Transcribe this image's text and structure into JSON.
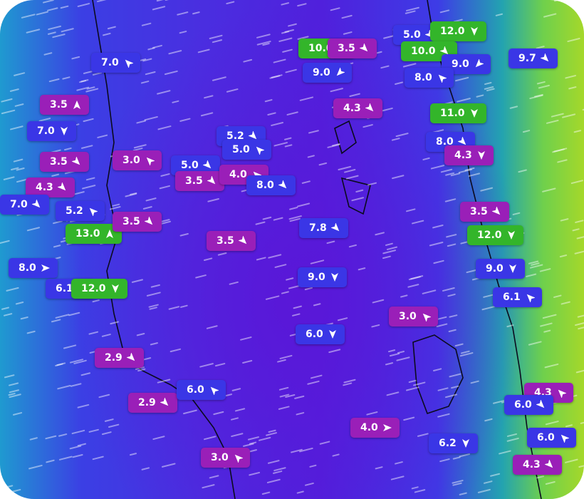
{
  "markers": [
    {
      "label": "7.0",
      "color": "#3a36e6"
    },
    {
      "label": "3.5",
      "color": "#9a1fb8"
    },
    {
      "label": "7.0",
      "color": "#3a36e6"
    },
    {
      "label": "3.5",
      "color": "#9a1fb8"
    },
    {
      "label": "4.3",
      "color": "#9a1fb8"
    },
    {
      "label": "7.0",
      "color": "#3a36e6"
    },
    {
      "label": "5.2",
      "color": "#3a36e6"
    },
    {
      "label": "13.0",
      "color": "#33b52a"
    },
    {
      "label": "3.5",
      "color": "#9a1fb8"
    },
    {
      "label": "3.0",
      "color": "#9a1fb8"
    },
    {
      "label": "5.0",
      "color": "#3a36e6"
    },
    {
      "label": "3.5",
      "color": "#9a1fb8"
    },
    {
      "label": "4.0",
      "color": "#9a1fb8"
    },
    {
      "label": "8.0",
      "color": "#3a36e6"
    },
    {
      "label": "5.2",
      "color": "#3a36e6"
    },
    {
      "label": "5.0",
      "color": "#3a36e6"
    },
    {
      "label": "3.5",
      "color": "#9a1fb8"
    },
    {
      "label": "8.0",
      "color": "#3a36e6"
    },
    {
      "label": "6.1",
      "color": "#3a36e6"
    },
    {
      "label": "12.0",
      "color": "#33b52a"
    },
    {
      "label": "2.9",
      "color": "#9a1fb8"
    },
    {
      "label": "2.9",
      "color": "#9a1fb8"
    },
    {
      "label": "6.0",
      "color": "#3a36e6"
    },
    {
      "label": "3.0",
      "color": "#9a1fb8"
    },
    {
      "label": "10.0",
      "color": "#33b52a"
    },
    {
      "label": "3.5",
      "color": "#9a1fb8"
    },
    {
      "label": "9.0",
      "color": "#3a36e6"
    },
    {
      "label": "4.3",
      "color": "#9a1fb8"
    },
    {
      "label": "5.0",
      "color": "#3a36e6"
    },
    {
      "label": "12.0",
      "color": "#33b52a"
    },
    {
      "label": "10.0",
      "color": "#33b52a"
    },
    {
      "label": "9.0",
      "color": "#3a36e6"
    },
    {
      "label": "8.0",
      "color": "#3a36e6"
    },
    {
      "label": "9.7",
      "color": "#3a36e6"
    },
    {
      "label": "11.0",
      "color": "#33b52a"
    },
    {
      "label": "8.0",
      "color": "#3a36e6"
    },
    {
      "label": "4.3",
      "color": "#9a1fb8"
    },
    {
      "label": "7.8",
      "color": "#3a36e6"
    },
    {
      "label": "9.0",
      "color": "#3a36e6"
    },
    {
      "label": "6.0",
      "color": "#3a36e6"
    },
    {
      "label": "3.0",
      "color": "#9a1fb8"
    },
    {
      "label": "4.0",
      "color": "#9a1fb8"
    },
    {
      "label": "6.2",
      "color": "#3a36e6"
    },
    {
      "label": "3.5",
      "color": "#9a1fb8"
    },
    {
      "label": "12.0",
      "color": "#33b52a"
    },
    {
      "label": "9.0",
      "color": "#3a36e6"
    },
    {
      "label": "6.1",
      "color": "#3a36e6"
    },
    {
      "label": "4.3",
      "color": "#9a1fb8"
    },
    {
      "label": "6.0",
      "color": "#3a36e6"
    },
    {
      "label": "6.0",
      "color": "#3a36e6"
    },
    {
      "label": "4.3",
      "color": "#9a1fb8"
    }
  ]
}
